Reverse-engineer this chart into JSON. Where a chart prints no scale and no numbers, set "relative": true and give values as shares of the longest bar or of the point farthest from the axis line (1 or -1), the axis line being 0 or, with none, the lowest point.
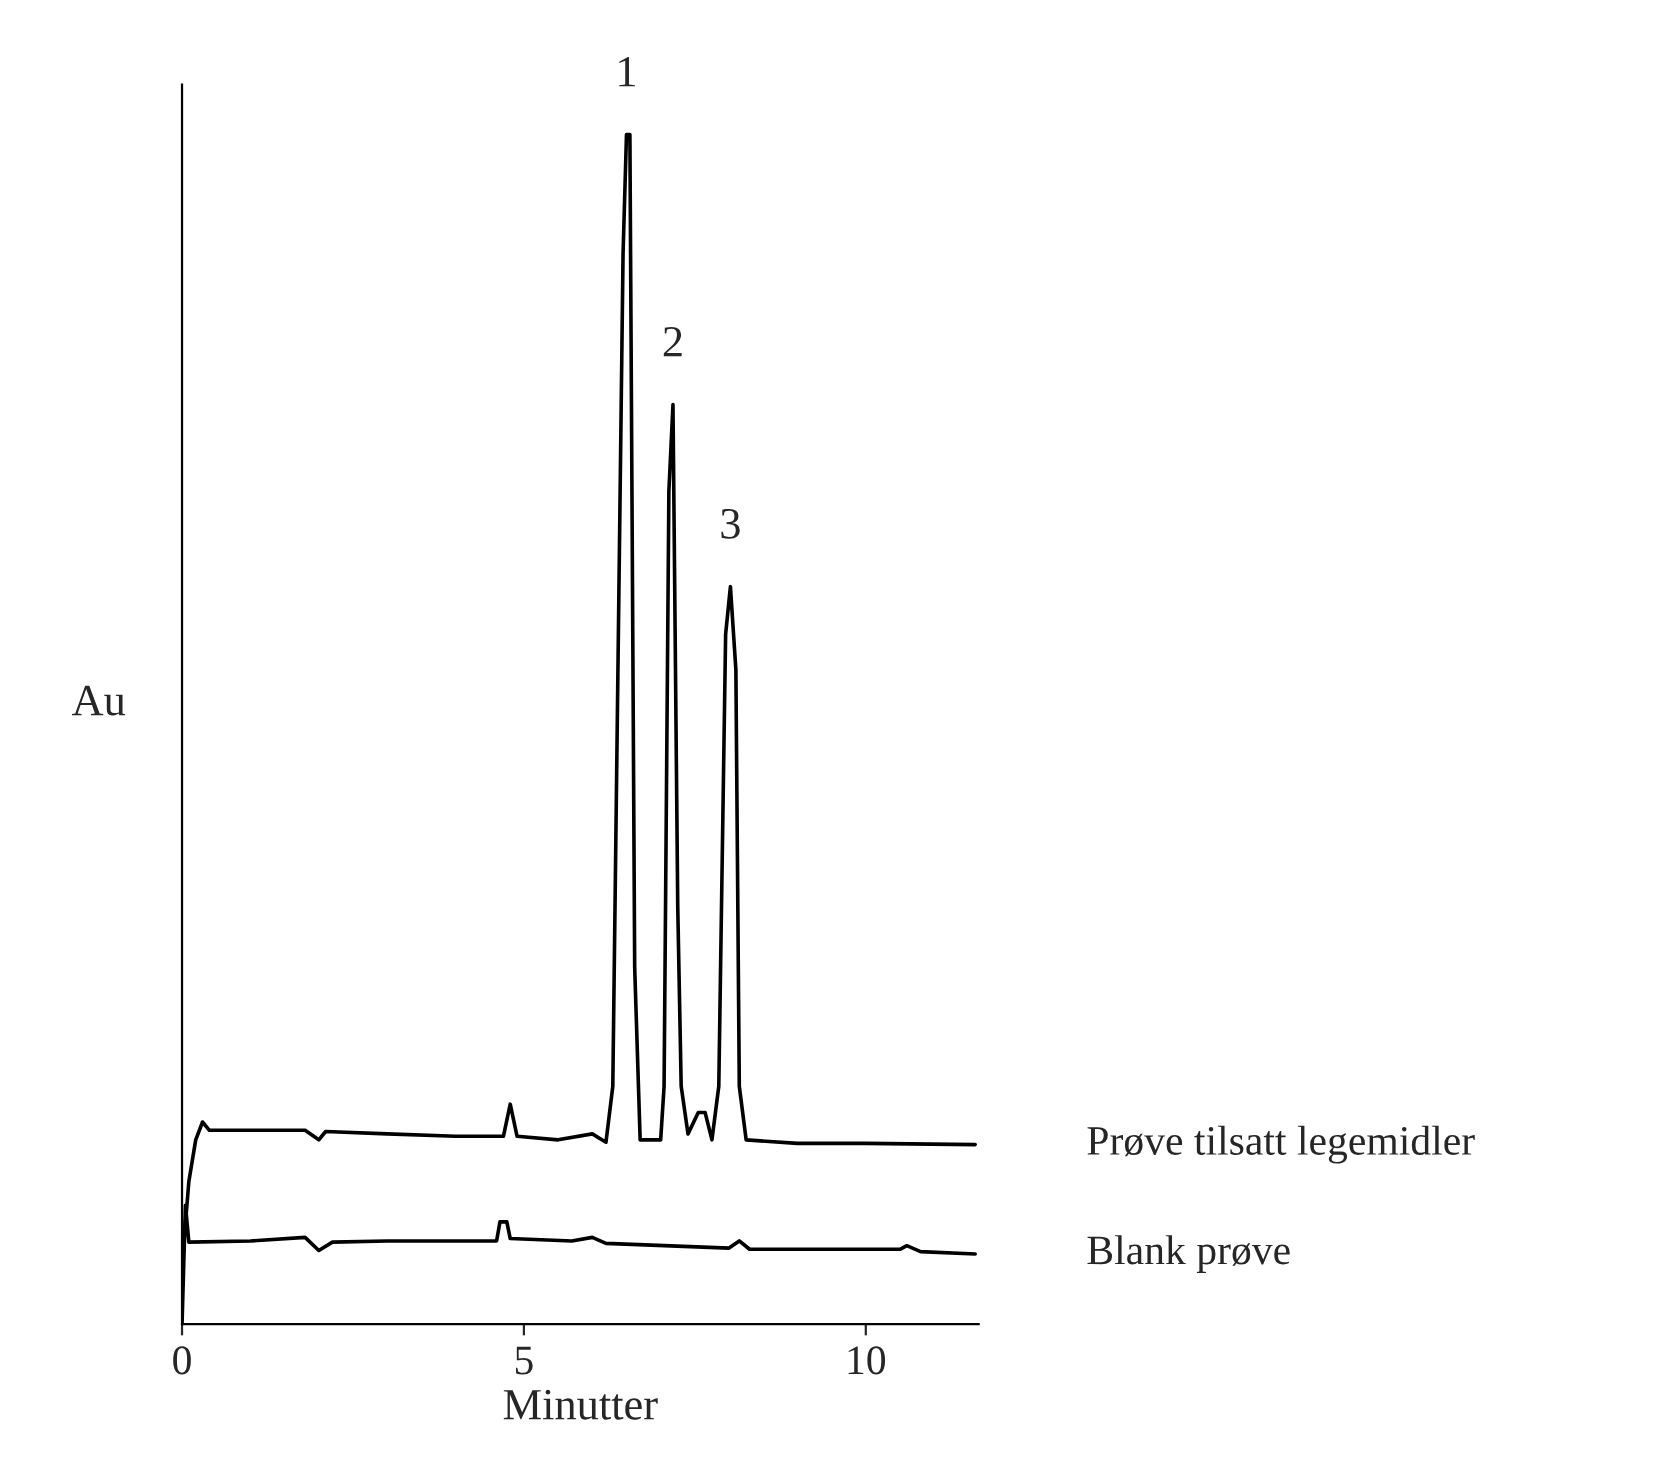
{
  "chart_data": {
    "type": "line",
    "relative": true,
    "xlabel": "Minutter",
    "ylabel": "Au",
    "xlim": [
      0,
      11.65
    ],
    "xticks": [
      0,
      5,
      10
    ],
    "tick_labels": "x",
    "grid": false,
    "legend": false,
    "marker": "none",
    "line_style": "solid",
    "annotations": [
      {
        "text": "1",
        "x": 6.5,
        "y": 1.0
      },
      {
        "text": "2",
        "x": 7.18,
        "y": 0.773
      },
      {
        "text": "3",
        "x": 8.02,
        "y": 0.62
      }
    ],
    "series": [
      {
        "name": "Prøve tilsatt legemidler",
        "color": "#000000",
        "x": [
          0.0,
          0.1,
          0.2,
          0.3,
          0.4,
          1.0,
          1.8,
          2.0,
          2.1,
          3.0,
          4.0,
          4.7,
          4.8,
          4.9,
          5.5,
          6.0,
          6.2,
          6.3,
          6.45,
          6.5,
          6.55,
          6.62,
          6.7,
          7.0,
          7.05,
          7.12,
          7.18,
          7.25,
          7.3,
          7.4,
          7.55,
          7.65,
          7.75,
          7.85,
          7.95,
          8.02,
          8.1,
          8.15,
          8.25,
          9.0,
          10.0,
          11.6
        ],
        "values": [
          0.05,
          0.12,
          0.155,
          0.17,
          0.163,
          0.163,
          0.163,
          0.155,
          0.162,
          0.16,
          0.158,
          0.158,
          0.185,
          0.158,
          0.155,
          0.16,
          0.153,
          0.2,
          0.9,
          1.0,
          1.0,
          0.3,
          0.155,
          0.155,
          0.2,
          0.7,
          0.773,
          0.35,
          0.2,
          0.16,
          0.178,
          0.178,
          0.155,
          0.2,
          0.58,
          0.62,
          0.55,
          0.2,
          0.155,
          0.152,
          0.152,
          0.151
        ]
      },
      {
        "name": "Blank prøve",
        "color": "#000000",
        "x": [
          0.0,
          0.05,
          0.1,
          1.0,
          1.8,
          2.0,
          2.2,
          3.0,
          4.6,
          4.65,
          4.75,
          4.8,
          5.7,
          6.0,
          6.2,
          8.0,
          8.15,
          8.3,
          10.5,
          10.6,
          10.8,
          11.6
        ],
        "values": [
          0.0,
          0.1,
          0.069,
          0.07,
          0.073,
          0.062,
          0.069,
          0.07,
          0.07,
          0.086,
          0.086,
          0.072,
          0.07,
          0.073,
          0.068,
          0.064,
          0.07,
          0.063,
          0.063,
          0.066,
          0.061,
          0.059
        ]
      }
    ]
  }
}
